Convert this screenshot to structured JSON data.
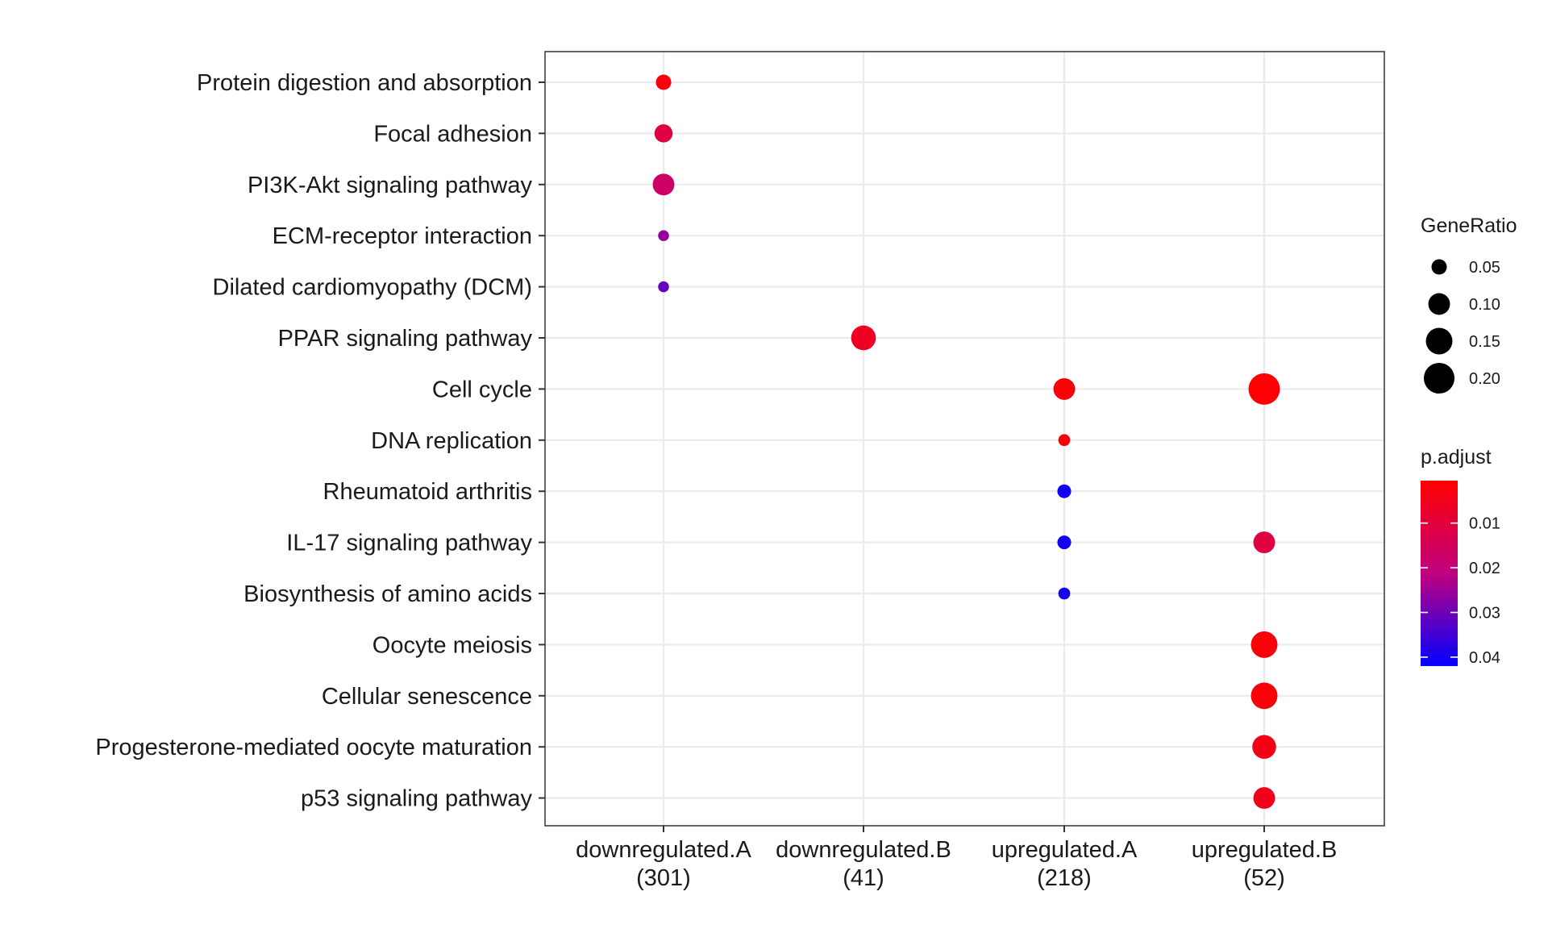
{
  "chart_data": {
    "type": "scatter",
    "title": "",
    "xlabel": "",
    "ylabel": "",
    "grid": true,
    "legend_position": "right",
    "categories_x": [
      {
        "name": "downregulated.A",
        "count": "(301)"
      },
      {
        "name": "downregulated.B",
        "count": "(41)"
      },
      {
        "name": "upregulated.A",
        "count": "(218)"
      },
      {
        "name": "upregulated.B",
        "count": "(52)"
      }
    ],
    "categories_y": [
      "Protein digestion and absorption",
      "Focal adhesion",
      "PI3K-Akt signaling pathway",
      "ECM-receptor interaction",
      "Dilated cardiomyopathy (DCM)",
      "PPAR signaling pathway",
      "Cell cycle",
      "DNA replication",
      "Rheumatoid arthritis",
      "IL-17 signaling pathway",
      "Biosynthesis of amino acids",
      "Oocyte meiosis",
      "Cellular senescence",
      "Progesterone-mediated oocyte maturation",
      "p53 signaling pathway"
    ],
    "points": [
      {
        "x": "downregulated.A",
        "y": "Protein digestion and absorption",
        "gene_ratio": 0.05,
        "p_adjust": 0.002
      },
      {
        "x": "downregulated.A",
        "y": "Focal adhesion",
        "gene_ratio": 0.07,
        "p_adjust": 0.011
      },
      {
        "x": "downregulated.A",
        "y": "PI3K-Akt signaling pathway",
        "gene_ratio": 0.1,
        "p_adjust": 0.017
      },
      {
        "x": "downregulated.A",
        "y": "ECM-receptor interaction",
        "gene_ratio": 0.025,
        "p_adjust": 0.026
      },
      {
        "x": "downregulated.A",
        "y": "Dilated cardiomyopathy (DCM)",
        "gene_ratio": 0.025,
        "p_adjust": 0.031
      },
      {
        "x": "downregulated.B",
        "y": "PPAR signaling pathway",
        "gene_ratio": 0.13,
        "p_adjust": 0.006
      },
      {
        "x": "upregulated.A",
        "y": "Cell cycle",
        "gene_ratio": 0.1,
        "p_adjust": 0.002
      },
      {
        "x": "upregulated.A",
        "y": "DNA replication",
        "gene_ratio": 0.03,
        "p_adjust": 0.002
      },
      {
        "x": "upregulated.A",
        "y": "Rheumatoid arthritis",
        "gene_ratio": 0.04,
        "p_adjust": 0.04
      },
      {
        "x": "upregulated.A",
        "y": "IL-17 signaling pathway",
        "gene_ratio": 0.04,
        "p_adjust": 0.04
      },
      {
        "x": "upregulated.A",
        "y": "Biosynthesis of amino acids",
        "gene_ratio": 0.03,
        "p_adjust": 0.04
      },
      {
        "x": "upregulated.B",
        "y": "Cell cycle",
        "gene_ratio": 0.21,
        "p_adjust": 0.001
      },
      {
        "x": "upregulated.B",
        "y": "IL-17 signaling pathway",
        "gene_ratio": 0.1,
        "p_adjust": 0.011
      },
      {
        "x": "upregulated.B",
        "y": "Oocyte meiosis",
        "gene_ratio": 0.15,
        "p_adjust": 0.002
      },
      {
        "x": "upregulated.B",
        "y": "Cellular senescence",
        "gene_ratio": 0.15,
        "p_adjust": 0.002
      },
      {
        "x": "upregulated.B",
        "y": "Progesterone-mediated oocyte maturation",
        "gene_ratio": 0.12,
        "p_adjust": 0.004
      },
      {
        "x": "upregulated.B",
        "y": "p53 signaling pathway",
        "gene_ratio": 0.1,
        "p_adjust": 0.005
      }
    ],
    "size_legend": {
      "title": "GeneRatio",
      "values": [
        0.05,
        0.1,
        0.15,
        0.2
      ],
      "labels": [
        "0.05",
        "0.10",
        "0.15",
        "0.20"
      ]
    },
    "color_legend": {
      "title": "p.adjust",
      "range": [
        0.0005,
        0.042
      ],
      "breaks": [
        0.01,
        0.02,
        0.03,
        0.04
      ],
      "labels": [
        "0.01",
        "0.02",
        "0.03",
        "0.04"
      ],
      "low_color": "#FF0000",
      "high_color": "#0000FF"
    },
    "colors": {
      "grid": "#EBEBEB",
      "panel_border": "#333333",
      "text": "#1A1A1A"
    }
  }
}
